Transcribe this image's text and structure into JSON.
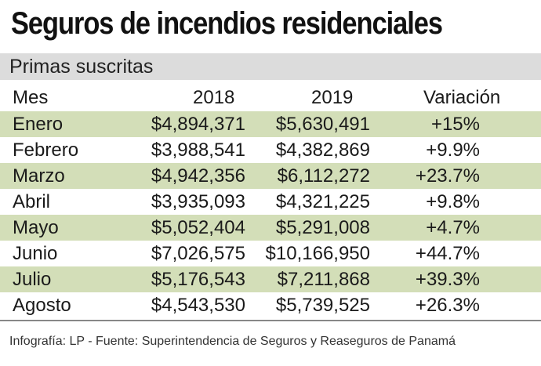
{
  "chart_data": {
    "type": "table",
    "title": "Seguros de incendios residenciales",
    "subtitle": "Primas suscritas",
    "columns": [
      "Mes",
      "2018",
      "2019",
      "Variación"
    ],
    "rows": [
      {
        "mes": "Enero",
        "y2018": "$4,894,371",
        "y2019": "$5,630,491",
        "variacion": "+15%"
      },
      {
        "mes": "Febrero",
        "y2018": "$3,988,541",
        "y2019": "$4,382,869",
        "variacion": "+9.9%"
      },
      {
        "mes": "Marzo",
        "y2018": "$4,942,356",
        "y2019": "$6,112,272",
        "variacion": "+23.7%"
      },
      {
        "mes": "Abril",
        "y2018": "$3,935,093",
        "y2019": "$4,321,225",
        "variacion": "+9.8%"
      },
      {
        "mes": "Mayo",
        "y2018": "$5,052,404",
        "y2019": "$5,291,008",
        "variacion": "+4.7%"
      },
      {
        "mes": "Junio",
        "y2018": "$7,026,575",
        "y2019": "$10,166,950",
        "variacion": "+44.7%"
      },
      {
        "mes": "Julio",
        "y2018": "$5,176,543",
        "y2019": "$7,211,868",
        "variacion": "+39.3%"
      },
      {
        "mes": "Agosto",
        "y2018": "$4,543,530",
        "y2019": "$5,739,525",
        "variacion": "+26.3%"
      }
    ],
    "source": "Infografía: LP  - Fuente: Superintendencia de Seguros y Reaseguros de Panamá"
  },
  "colors": {
    "shaded_row": "#d3deb8",
    "subtitle_bar": "#dcdcdc"
  }
}
